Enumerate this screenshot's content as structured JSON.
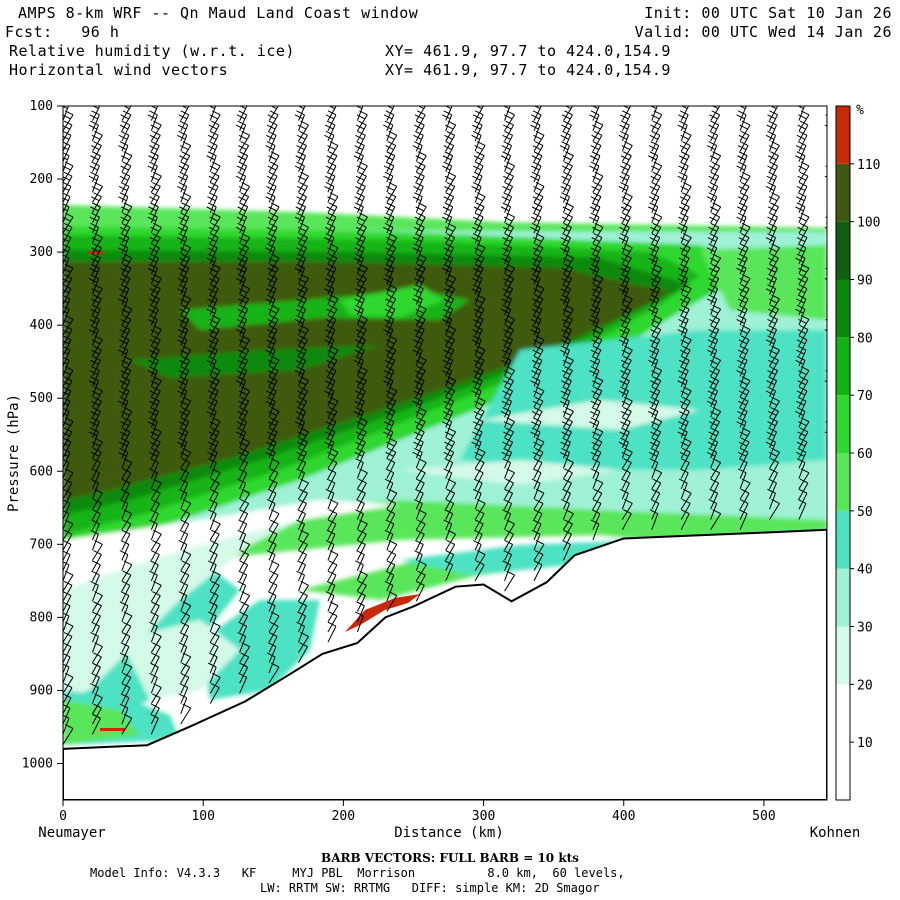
{
  "header": {
    "title": "AMPS 8-km WRF -- Qn Maud Land Coast window",
    "fcst": "Fcst:   96 h",
    "init": "Init: 00 UTC Sat 10 Jan 26",
    "valid": "Valid: 00 UTC Wed 14 Jan 26",
    "field1": "Relative humidity (w.r.t. ice)",
    "field2": "Horizontal wind vectors",
    "xy1": "XY= 461.9, 97.7 to 424.0,154.9",
    "xy2": "XY= 461.9, 97.7 to 424.0,154.9"
  },
  "footer": {
    "barb_note": "BARB VECTORS:  FULL BARB = 10 kts",
    "model_info": "Model Info: V4.3.3   KF     MYJ PBL  Morrison          8.0 km,  60 levels,",
    "model_info2": "LW: RRTM SW: RRTMG   DIFF: simple KM: 2D Smagor"
  },
  "colors": {
    "c10": "#ffffff",
    "c20": "#ffffff",
    "c30": "#d4fae8",
    "c40": "#9ff2d6",
    "c50": "#4ee2c3",
    "c60": "#5ae65a",
    "c70": "#2ed82e",
    "c80": "#12b412",
    "c90": "#0a8a0a",
    "c100": "#105e10",
    "c110": "#3d5a10",
    "c120": "#c82a08"
  },
  "chart_data": {
    "type": "heatmap",
    "title": "Relative humidity (w.r.t. ice) with horizontal wind vectors",
    "xlabel": "Distance (km)",
    "ylabel": "Pressure (hPa)",
    "xlim": [
      0,
      545
    ],
    "ylim": [
      1050,
      100
    ],
    "x_ticks": [
      0,
      100,
      200,
      300,
      400,
      500
    ],
    "y_ticks": [
      100,
      200,
      300,
      400,
      500,
      600,
      700,
      800,
      900,
      1000
    ],
    "x_left_label": "Neumayer",
    "x_right_label": "Kohnen",
    "colorbar": {
      "unit": "%",
      "levels": [
        10,
        20,
        30,
        40,
        50,
        60,
        70,
        80,
        90,
        100,
        110
      ]
    },
    "terrain_surface": [
      {
        "x": 0,
        "p": 980
      },
      {
        "x": 60,
        "p": 975
      },
      {
        "x": 90,
        "p": 950
      },
      {
        "x": 130,
        "p": 915
      },
      {
        "x": 160,
        "p": 880
      },
      {
        "x": 185,
        "p": 850
      },
      {
        "x": 210,
        "p": 835
      },
      {
        "x": 230,
        "p": 800
      },
      {
        "x": 250,
        "p": 785
      },
      {
        "x": 280,
        "p": 758
      },
      {
        "x": 300,
        "p": 755
      },
      {
        "x": 320,
        "p": 778
      },
      {
        "x": 345,
        "p": 752
      },
      {
        "x": 365,
        "p": 715
      },
      {
        "x": 400,
        "p": 692
      },
      {
        "x": 450,
        "p": 688
      },
      {
        "x": 500,
        "p": 684
      },
      {
        "x": 545,
        "p": 680
      }
    ],
    "barbs": {
      "units": "kts",
      "full_barb": 10
    }
  }
}
